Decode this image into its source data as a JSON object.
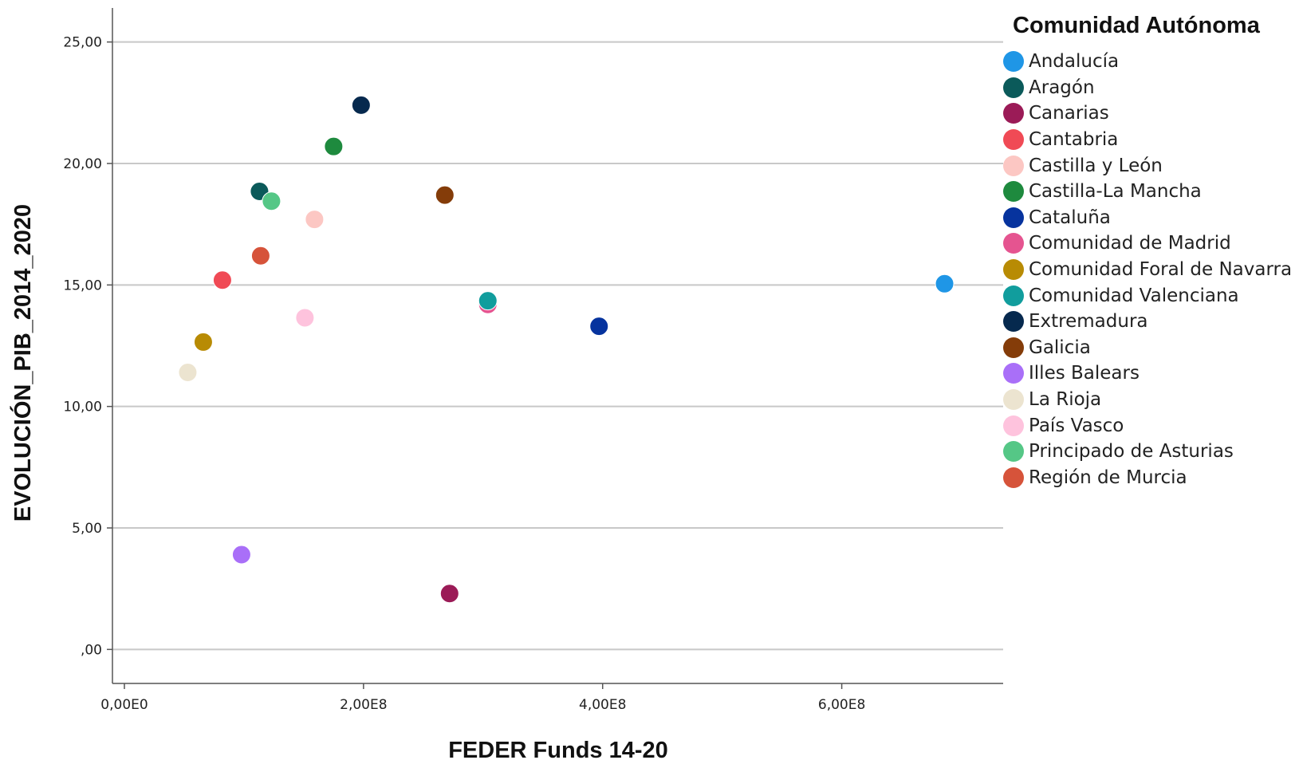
{
  "chart_data": {
    "type": "scatter",
    "title": "",
    "xlabel": "FEDER Funds 14-20",
    "ylabel": "EVOLUCIÓN_PIB_2014_2020",
    "xlim": [
      -10000000.0,
      735000000.0
    ],
    "ylim": [
      -1.4,
      26.4
    ],
    "x_ticks": [
      {
        "value": 0,
        "label": "0,00E0"
      },
      {
        "value": 200000000,
        "label": "2,00E8"
      },
      {
        "value": 400000000,
        "label": "4,00E8"
      },
      {
        "value": 600000000,
        "label": "6,00E8"
      }
    ],
    "y_ticks": [
      {
        "value": 0,
        "label": ",00"
      },
      {
        "value": 5,
        "label": "5,00"
      },
      {
        "value": 10,
        "label": "10,00"
      },
      {
        "value": 15,
        "label": "15,00"
      },
      {
        "value": 20,
        "label": "20,00"
      },
      {
        "value": 25,
        "label": "25,00"
      }
    ],
    "grid": "horizontal",
    "legend_title": "Comunidad Autónoma",
    "legend_position": "right",
    "series": [
      {
        "name": "Andalucía",
        "color": "#1f96e6",
        "x": 686000000,
        "y": 15.05
      },
      {
        "name": "Aragón",
        "color": "#0b5a5a",
        "x": 113000000,
        "y": 18.85
      },
      {
        "name": "Canarias",
        "color": "#9b1b57",
        "x": 272000000,
        "y": 2.3
      },
      {
        "name": "Cantabria",
        "color": "#f04a55",
        "x": 82000000,
        "y": 15.2
      },
      {
        "name": "Castilla y León",
        "color": "#fcc7c3",
        "x": 159000000,
        "y": 17.7
      },
      {
        "name": "Castilla-La Mancha",
        "color": "#1e8a3e",
        "x": 175000000,
        "y": 20.7
      },
      {
        "name": "Cataluña",
        "color": "#06339e",
        "x": 397000000,
        "y": 13.3
      },
      {
        "name": "Comunidad de Madrid",
        "color": "#e55490",
        "x": 304000000,
        "y": 14.2
      },
      {
        "name": "Comunidad Foral de Navarra",
        "color": "#b88b04",
        "x": 66000000,
        "y": 12.65
      },
      {
        "name": "Comunidad Valenciana",
        "color": "#119d9d",
        "x": 304000000,
        "y": 14.35
      },
      {
        "name": "Extremadura",
        "color": "#06294e",
        "x": 198000000,
        "y": 22.4
      },
      {
        "name": "Galicia",
        "color": "#843c09",
        "x": 268000000,
        "y": 18.7
      },
      {
        "name": "Illes Balears",
        "color": "#a96ff8",
        "x": 98000000,
        "y": 3.9
      },
      {
        "name": "La Rioja",
        "color": "#ece4d0",
        "x": 53000000,
        "y": 11.4
      },
      {
        "name": "País Vasco",
        "color": "#fec3dd",
        "x": 151000000,
        "y": 13.65
      },
      {
        "name": "Principado de Asturias",
        "color": "#55c786",
        "x": 123000000,
        "y": 18.45
      },
      {
        "name": "Región de Murcia",
        "color": "#d6533a",
        "x": 114000000,
        "y": 16.2
      }
    ]
  }
}
